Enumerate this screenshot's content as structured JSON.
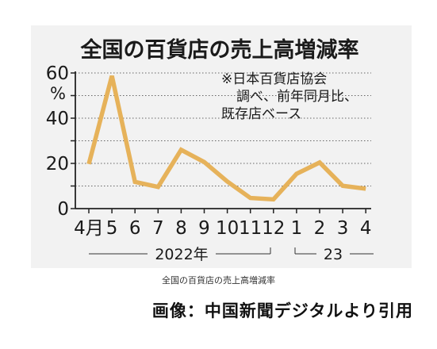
{
  "chart_data": {
    "type": "line",
    "title": "全国の百貨店の売上高増減率",
    "ylabel": "%",
    "note": [
      "※日本百貨店協会",
      "調べ、前年同月比、",
      "既存店ベース"
    ],
    "categories": [
      "4月",
      "5",
      "6",
      "7",
      "8",
      "9",
      "10",
      "11",
      "12",
      "1",
      "2",
      "3",
      "4"
    ],
    "period_labels": [
      "2022年",
      "23"
    ],
    "yticks": [
      0,
      20,
      40,
      60
    ],
    "ylim": [
      0,
      60
    ],
    "series": [
      {
        "values": [
          19.7,
          58.7,
          11.8,
          9.6,
          26.0,
          20.6,
          12.0,
          4.7,
          4.1,
          15.4,
          20.4,
          10.1,
          8.8
        ]
      }
    ],
    "line_color": "#e6b25a",
    "grid": "dotted"
  },
  "caption": "全国の百貨店の売上高増減率",
  "credit": "画像：中国新聞デジタルより引用"
}
